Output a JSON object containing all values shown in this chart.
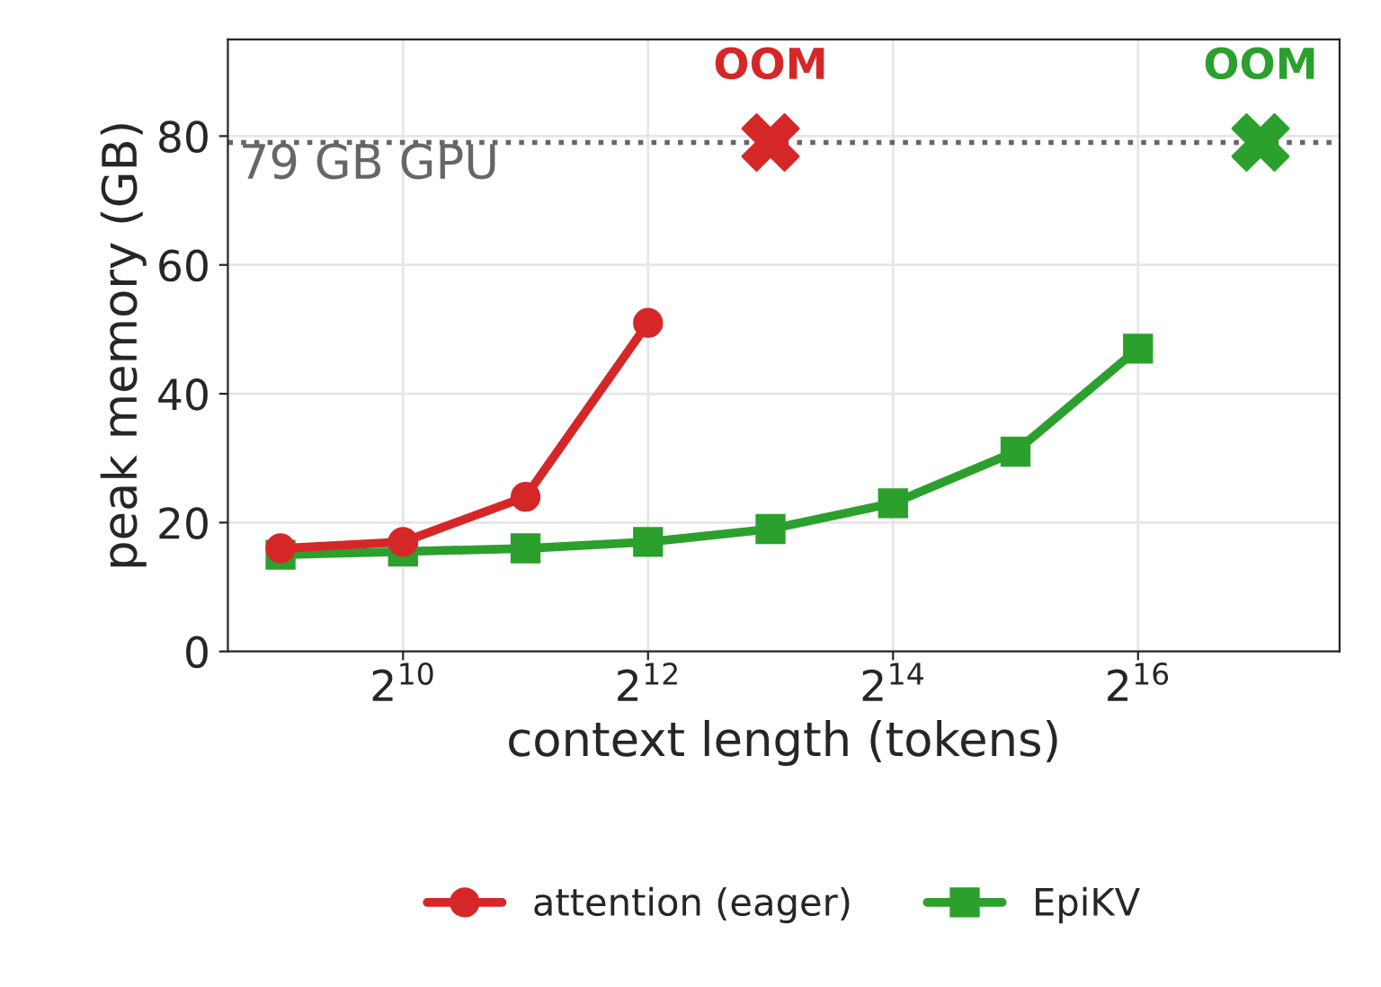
{
  "chart_data": {
    "type": "line",
    "xlabel": "context length (tokens)",
    "ylabel": "peak memory (GB)",
    "log": "x",
    "xlim": [
      380,
      205000
    ],
    "xticks": [
      {
        "value": 1024,
        "label": "2$^{10}$"
      },
      {
        "value": 4096,
        "label": "2$^{12}$"
      },
      {
        "value": 16384,
        "label": "2$^{14}$"
      },
      {
        "value": 65536,
        "label": "2$^{16}$"
      }
    ],
    "ylim": [
      0,
      95
    ],
    "yticks": [
      0,
      20,
      40,
      60,
      80
    ],
    "grid": true,
    "legend": "bottom",
    "ref_lines": [
      {
        "axis": "y",
        "value": 79,
        "label": "79 GB GPU",
        "color": "#666666",
        "line_style": "dotted"
      }
    ],
    "series": [
      {
        "name": "attention (eager)",
        "color": "#d62728",
        "marker": "circle",
        "x": [
          512,
          1024,
          2048,
          4096
        ],
        "values": [
          16,
          17,
          24,
          51
        ]
      },
      {
        "name": "EpiKV",
        "color": "#2ca02c",
        "marker": "square",
        "x": [
          512,
          1024,
          2048,
          4096,
          8192,
          16384,
          32768,
          65536
        ],
        "values": [
          15,
          15.5,
          16,
          17,
          19,
          23,
          31,
          47
        ]
      },
      {
        "type": "scatter",
        "color": "#d62728",
        "marker": "cross",
        "x": [
          8192
        ],
        "values": [
          79
        ],
        "value_labels": [
          "OOM"
        ]
      },
      {
        "type": "scatter",
        "color": "#2ca02c",
        "marker": "cross",
        "x": [
          131072
        ],
        "values": [
          79
        ],
        "value_labels": [
          "OOM"
        ]
      }
    ]
  }
}
